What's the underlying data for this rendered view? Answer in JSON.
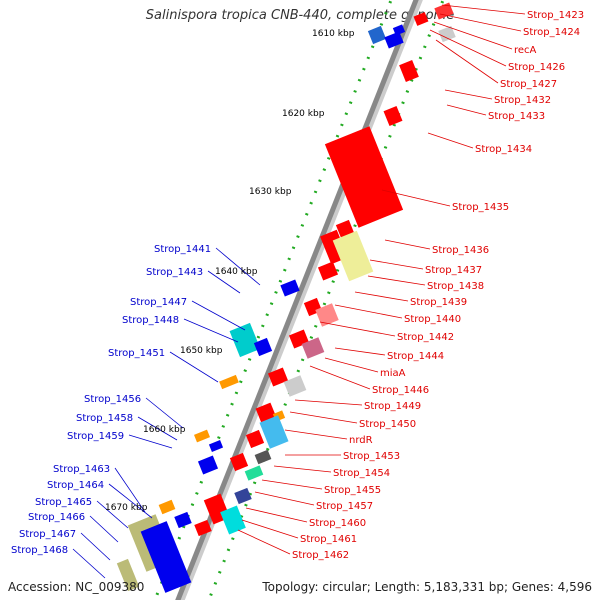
{
  "title": "Salinispora tropica CNB-440, complete genome",
  "accession": "Accession: NC_009380",
  "topology": "Topology: circular; Length: 5,183,331 bp; Genes: 4,596",
  "colors": {
    "forward_label": "#e00000",
    "reverse_label": "#0000cc",
    "backbone": "#888888",
    "tick": "#118811"
  },
  "ticks": [
    "1610 kbp",
    "1620 kbp",
    "1630 kbp",
    "1640 kbp",
    "1650 kbp",
    "1660 kbp",
    "1670 kbp"
  ],
  "right_labels": [
    "Strop_1423",
    "Strop_1424",
    "recA",
    "Strop_1426",
    "Strop_1427",
    "Strop_1432",
    "Strop_1433",
    "Strop_1434",
    "Strop_1435",
    "Strop_1436",
    "Strop_1437",
    "Strop_1438",
    "Strop_1439",
    "Strop_1440",
    "Strop_1442",
    "Strop_1444",
    "miaA",
    "Strop_1446",
    "Strop_1449",
    "Strop_1450",
    "nrdR",
    "Strop_1453",
    "Strop_1454",
    "Strop_1455",
    "Strop_1457",
    "Strop_1460",
    "Strop_1461",
    "Strop_1462"
  ],
  "left_labels": [
    "Strop_1441",
    "Strop_1443",
    "Strop_1447",
    "Strop_1448",
    "Strop_1451",
    "Strop_1456",
    "Strop_1458",
    "Strop_1459",
    "Strop_1463",
    "Strop_1464",
    "Strop_1465",
    "Strop_1466",
    "Strop_1467",
    "Strop_1468"
  ]
}
